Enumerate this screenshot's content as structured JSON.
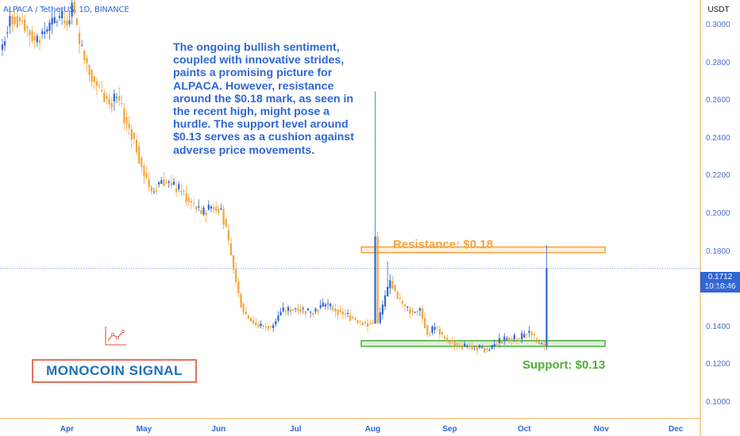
{
  "ticker_label": "ALPACA / TetherUS, 1D, BINANCE",
  "currency": "USDT",
  "annotation": "The ongoing bullish sentiment, coupled with innovative strides, paints a promising picture for ALPACA. However, resistance around the $0.18 mark, as seen in the recent high, might pose a hurdle. The support level around $0.13 serves as a cushion against adverse price movements.",
  "brand": "MONOCOIN SIGNAL",
  "logo_icon": "chart-line-icon",
  "current_price": {
    "value": "0.1712",
    "countdown": "10:18:46"
  },
  "colors": {
    "up": "#2f66d4",
    "down": "#f2a43c",
    "resistance": "#f2a43c",
    "support": "#4caf3a",
    "brand_border": "#e5725b"
  },
  "chart_data": {
    "type": "candlestick",
    "y_axis": {
      "ticks": [
        "0.3000",
        "0.2800",
        "0.2600",
        "0.2400",
        "0.2200",
        "0.2000",
        "0.1800",
        "0.1600",
        "0.1400",
        "0.1200",
        "0.1000"
      ],
      "range": [
        0.0915,
        0.3135
      ],
      "side": "right"
    },
    "x_axis": {
      "ticks": [
        "Apr",
        "May",
        "Jun",
        "Jul",
        "Aug",
        "Sep",
        "Oct",
        "Nov",
        "Dec"
      ]
    },
    "grid": false,
    "zones": [
      {
        "name": "Resistance: $0.18",
        "low": 0.1795,
        "high": 0.1825
      },
      {
        "name": "Support: $0.13",
        "low": 0.1298,
        "high": 0.1328
      }
    ],
    "anchors": [
      [
        0,
        0.29
      ],
      [
        3,
        0.305
      ],
      [
        8,
        0.302
      ],
      [
        13,
        0.292
      ],
      [
        18,
        0.298
      ],
      [
        23,
        0.305
      ],
      [
        26,
        0.3
      ],
      [
        28,
        0.312
      ],
      [
        31,
        0.29
      ],
      [
        34,
        0.28
      ],
      [
        37,
        0.27
      ],
      [
        40,
        0.265
      ],
      [
        43,
        0.258
      ],
      [
        46,
        0.262
      ],
      [
        50,
        0.248
      ],
      [
        53,
        0.24
      ],
      [
        56,
        0.225
      ],
      [
        60,
        0.212
      ],
      [
        64,
        0.218
      ],
      [
        68,
        0.215
      ],
      [
        72,
        0.212
      ],
      [
        76,
        0.206
      ],
      [
        80,
        0.2
      ],
      [
        84,
        0.204
      ],
      [
        88,
        0.203
      ],
      [
        92,
        0.178
      ],
      [
        95,
        0.158
      ],
      [
        97,
        0.148
      ],
      [
        102,
        0.141
      ],
      [
        108,
        0.14
      ],
      [
        112,
        0.148
      ],
      [
        118,
        0.15
      ],
      [
        124,
        0.148
      ],
      [
        130,
        0.152
      ],
      [
        136,
        0.148
      ],
      [
        142,
        0.144
      ],
      [
        146,
        0.142
      ],
      [
        149,
        0.142
      ],
      [
        150,
        0.188
      ],
      [
        151,
        0.142
      ],
      [
        156,
        0.165
      ],
      [
        159,
        0.155
      ],
      [
        162,
        0.151
      ],
      [
        165,
        0.148
      ],
      [
        168,
        0.15
      ],
      [
        171,
        0.136
      ],
      [
        174,
        0.14
      ],
      [
        178,
        0.134
      ],
      [
        184,
        0.13
      ],
      [
        190,
        0.13
      ],
      [
        195,
        0.128
      ],
      [
        198,
        0.131
      ],
      [
        203,
        0.134
      ],
      [
        208,
        0.134
      ],
      [
        212,
        0.138
      ],
      [
        215,
        0.132
      ],
      [
        218,
        0.13
      ],
      [
        219,
        0.1712
      ]
    ],
    "wicks": [
      [
        28,
        0.314
      ],
      [
        150,
        0.265
      ],
      [
        151,
        0.142
      ],
      [
        155,
        0.175
      ],
      [
        219,
        0.1835
      ]
    ],
    "last": {
      "close": 0.1712
    }
  }
}
